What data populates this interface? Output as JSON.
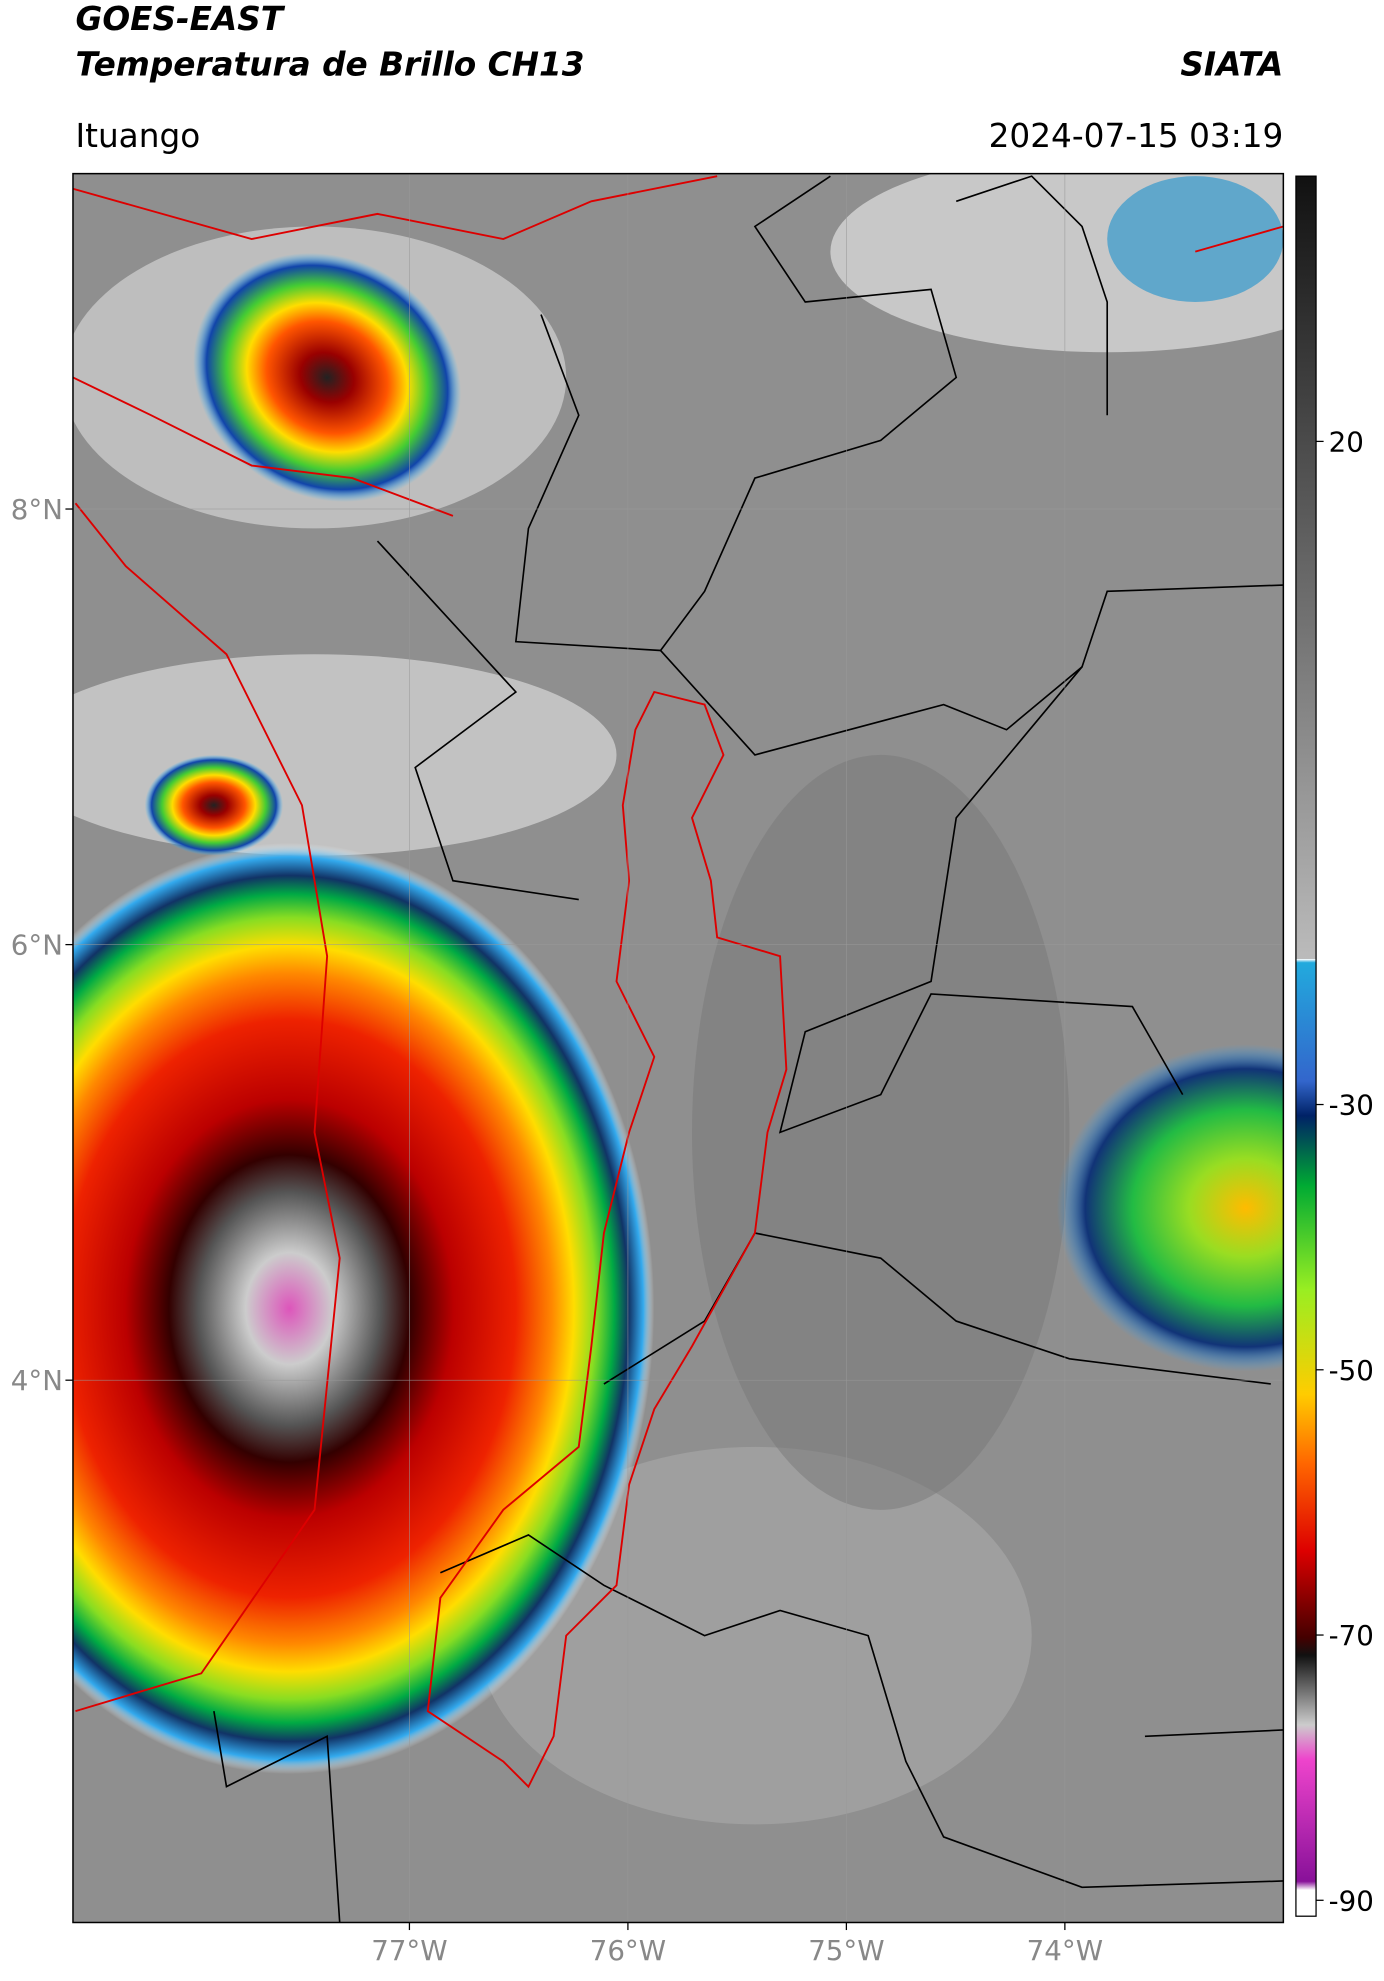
{
  "header": {
    "title": "GOES-EAST",
    "subtitle": "Temperatura de Brillo CH13",
    "agency": "SIATA",
    "location": "Ituango",
    "datetime": "2024-07-15 03:19"
  },
  "map": {
    "xlim": [
      -78.54,
      -73.0
    ],
    "ylim": [
      1.51,
      9.54
    ],
    "xticks": [
      {
        "value": -77,
        "label": "77°W"
      },
      {
        "value": -76,
        "label": "76°W"
      },
      {
        "value": -75,
        "label": "75°W"
      },
      {
        "value": -74,
        "label": "74°W"
      }
    ],
    "yticks": [
      {
        "value": 8,
        "label": "8°N"
      },
      {
        "value": 6,
        "label": "6°N"
      },
      {
        "value": 4,
        "label": "4°N"
      }
    ],
    "grid": true
  },
  "colorbar": {
    "lim": [
      -91.2,
      40
    ],
    "ticks": [
      20,
      -30,
      -50,
      -70,
      -90
    ]
  }
}
